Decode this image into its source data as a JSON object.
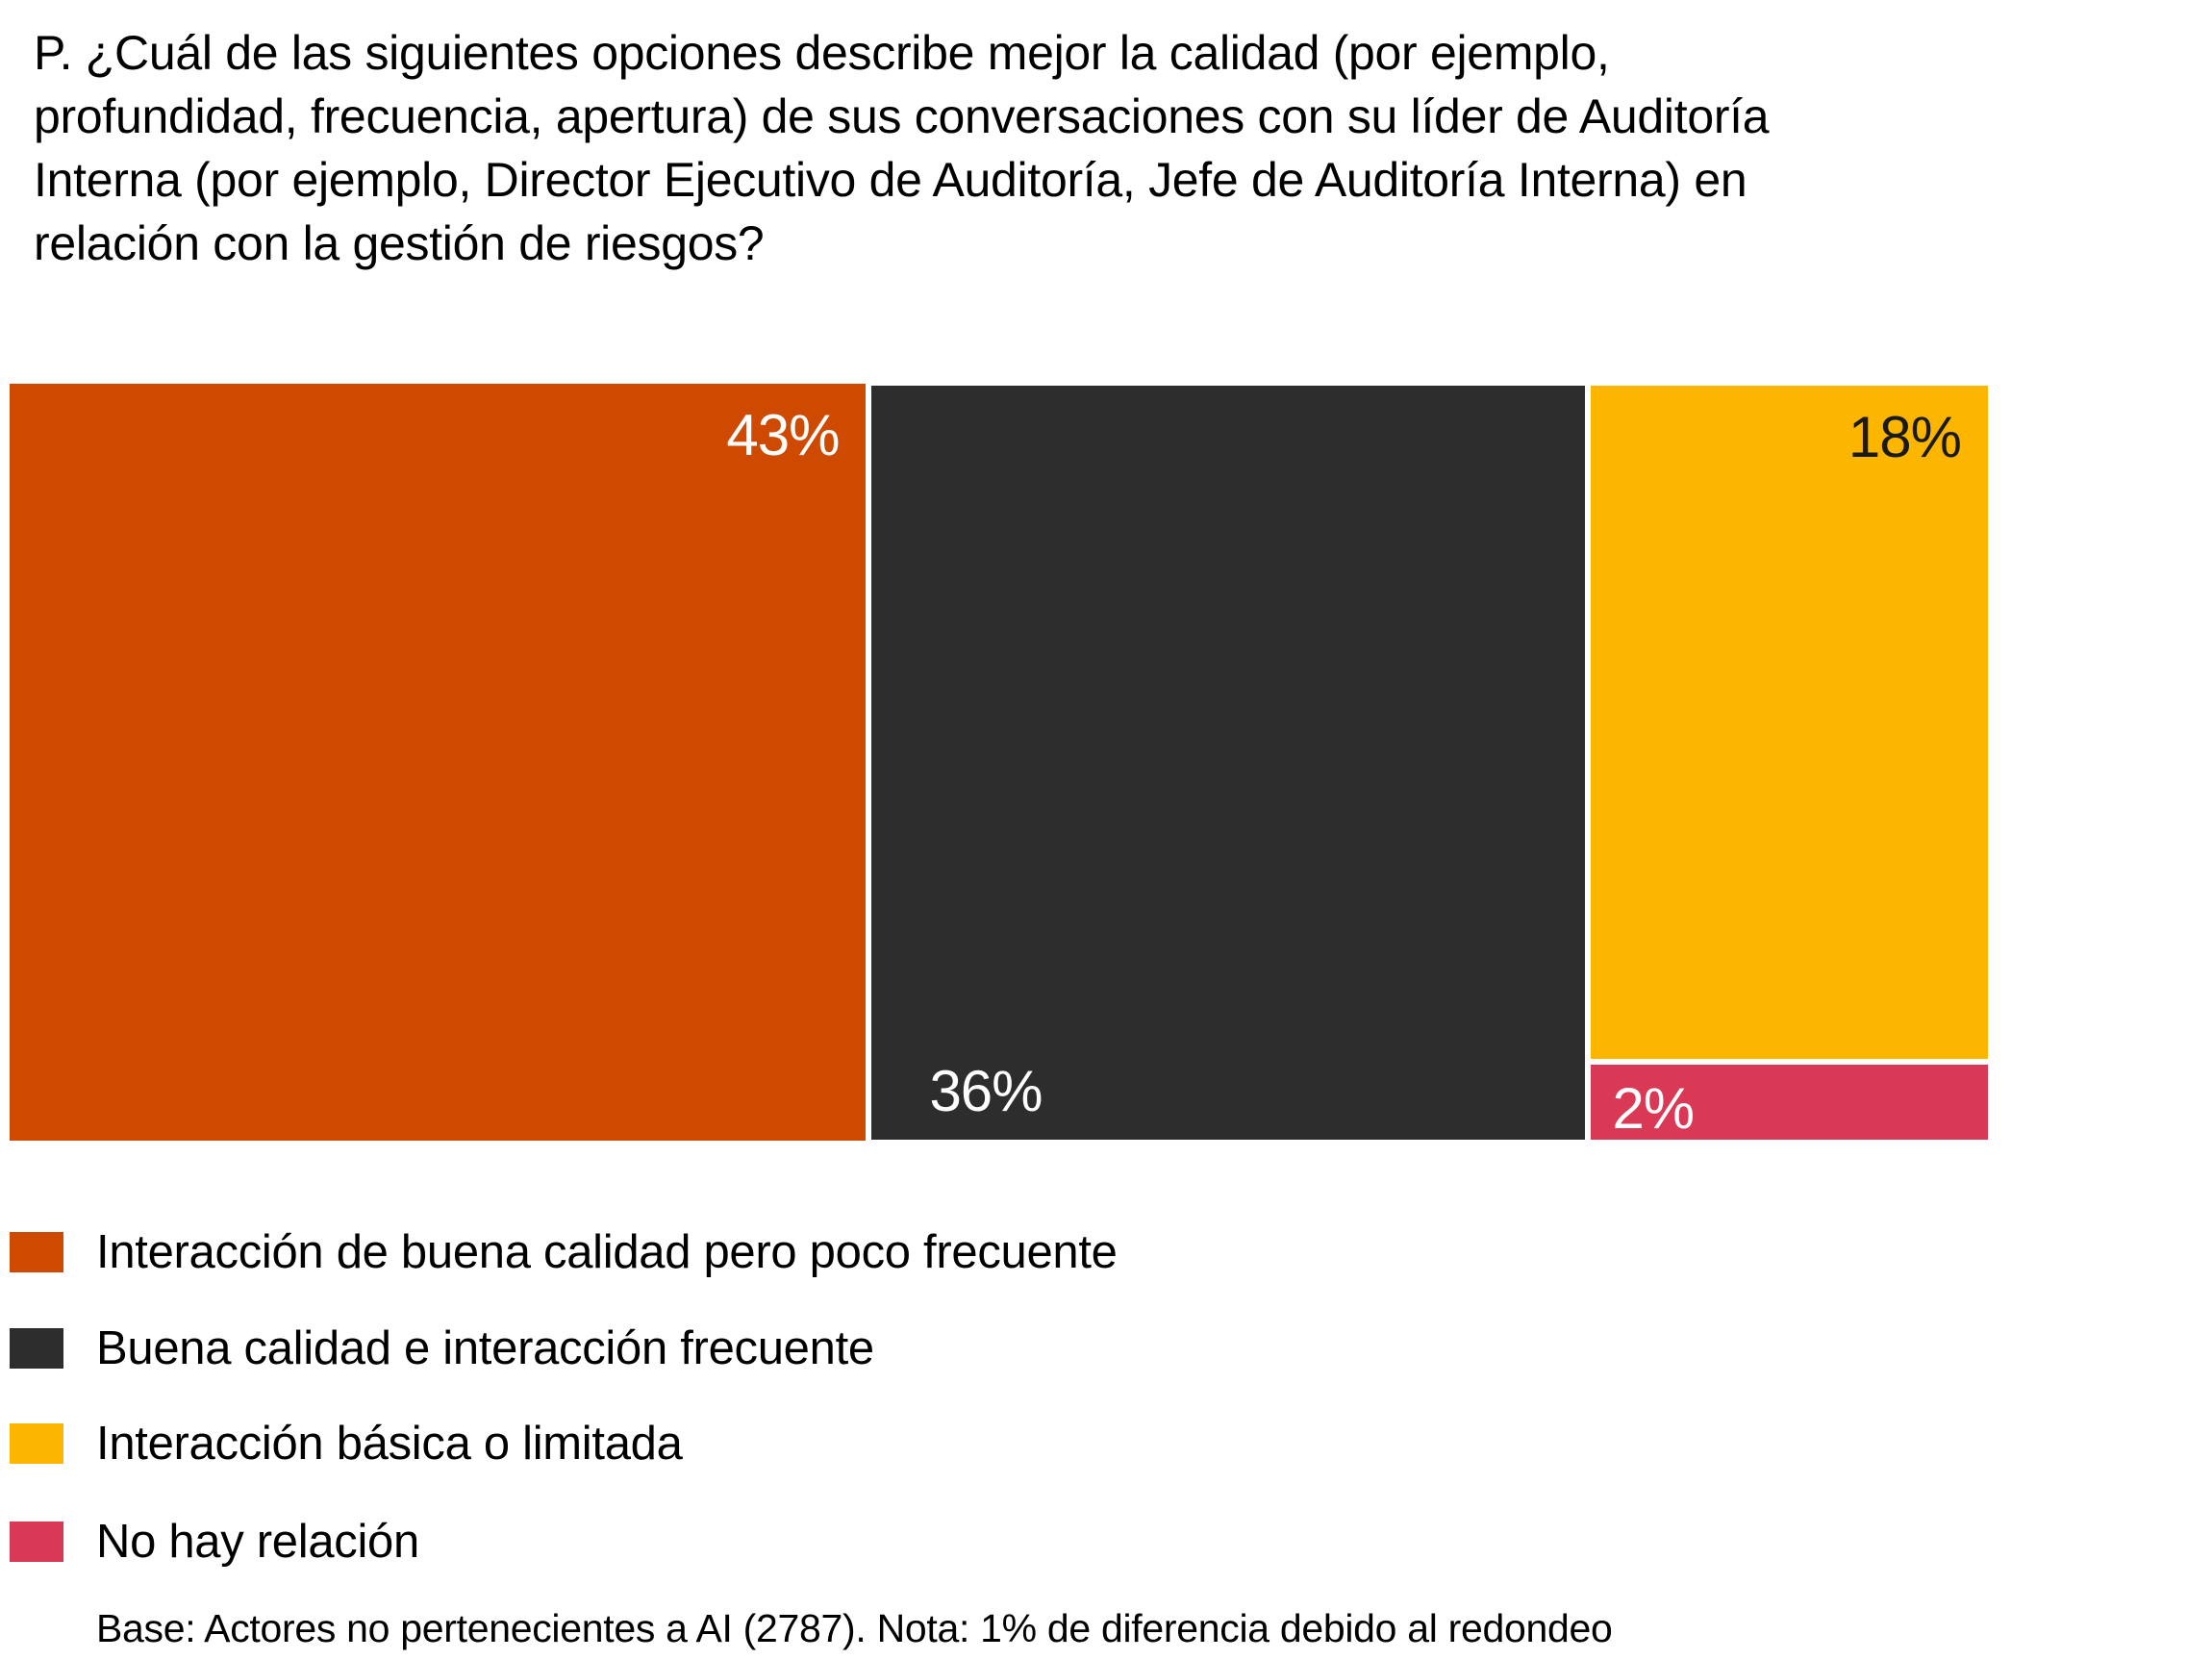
{
  "chart_data": {
    "type": "treemap",
    "title": "P. ¿Cuál de las siguientes opciones describe mejor la calidad (por ejemplo, profundidad, frecuencia, apertura) de sus conversaciones con su líder de Auditoría Interna (por ejemplo, Director Ejecutivo de Auditoría, Jefe de Auditoría Interna) en relación con la gestión de riesgos?",
    "unit": "%",
    "series": [
      {
        "name": "Interacción de buena calidad pero poco frecuente",
        "value": 43,
        "label": "43%",
        "color": "#CD4A00",
        "label_color": "#ffffff"
      },
      {
        "name": "Buena calidad e interacción frecuente",
        "value": 36,
        "label": "36%",
        "color": "#2D2D2D",
        "label_color": "#ffffff"
      },
      {
        "name": "Interacción básica o limitada",
        "value": 18,
        "label": "18%",
        "color": "#FDB600",
        "label_color": "#1a1a1a"
      },
      {
        "name": "No hay relación",
        "value": 2,
        "label": "2%",
        "color": "#D93954",
        "label_color": "#ffffff"
      }
    ],
    "legend_position": "bottom-left",
    "footnote": "Base: Actores no pertenecientes a AI (2787). Nota: 1% de diferencia debido al redondeo"
  },
  "title_lines": [
    "P. ¿Cuál de las siguientes opciones describe mejor la calidad (por ejemplo,",
    "profundidad, frecuencia, apertura) de sus conversaciones con su líder de Auditoría",
    "Interna (por ejemplo, Director Ejecutivo de Auditoría, Jefe de Auditoría Interna) en",
    "relación con la gestión de riesgos?"
  ]
}
